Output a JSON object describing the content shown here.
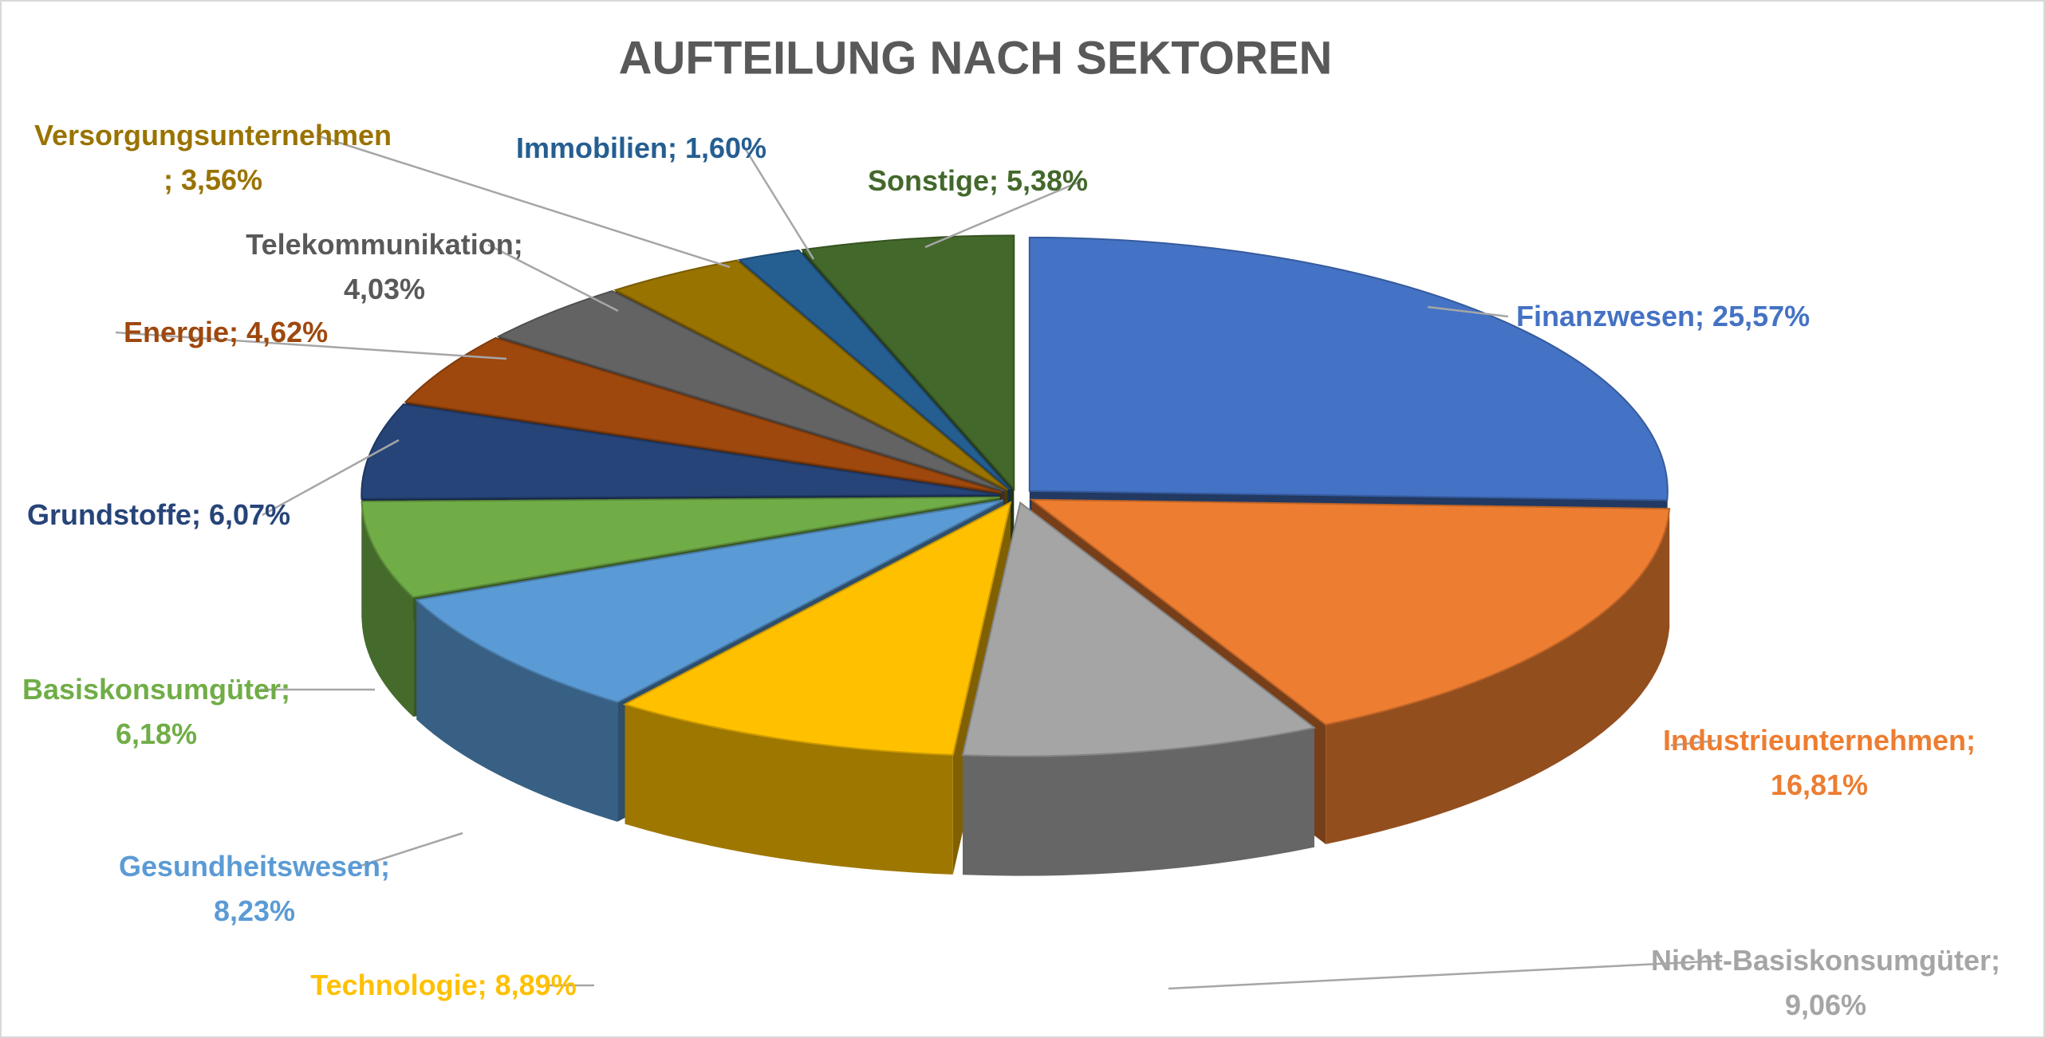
{
  "chart_data": {
    "type": "pie3d",
    "title": "AUFTEILUNG NACH SEKTOREN",
    "values": [
      25.57,
      16.81,
      9.06,
      8.89,
      8.23,
      6.18,
      6.07,
      4.62,
      4.03,
      3.56,
      1.6,
      5.38
    ],
    "value_labels": [
      "Finanzwesen; 25,57%",
      "Industrieunternehmen;\n16,81%",
      "Nicht-Basiskonsumgüter;\n9,06%",
      "Technologie; 8,89%",
      "Gesundheitswesen;\n8,23%",
      "Basiskonsumgüter;\n6,18%",
      "Grundstoffe; 6,07%",
      "Energie; 4,62%",
      "Telekommunikation;\n4,03%",
      "Versorgungsunternehmen\n; 3,56%",
      "Immobilien; 1,60%",
      "Sonstige; 5,38%"
    ],
    "colors": [
      "#4472c4",
      "#ed7d31",
      "#a5a5a5",
      "#ffc000",
      "#5b9bd5",
      "#70ad47",
      "#264478",
      "#9e480e",
      "#636363",
      "#997300",
      "#255e91",
      "#43682b"
    ]
  }
}
